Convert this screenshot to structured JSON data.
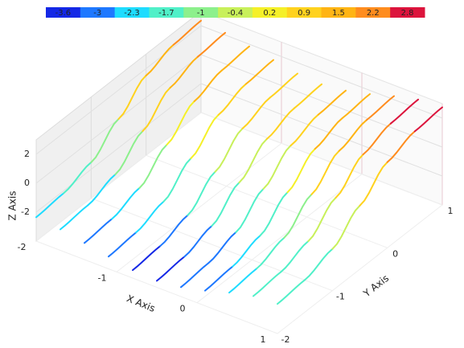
{
  "chart_data": {
    "type": "line3d",
    "x_label": "X Axis",
    "y_label": "Y Axis",
    "z_label": "Z Axis",
    "xlim": [
      -2,
      1
    ],
    "ylim": [
      -2,
      1
    ],
    "zlim": [
      -4,
      3
    ],
    "xticks": [
      -2,
      -1,
      0,
      1
    ],
    "yticks": [
      -2,
      -1,
      0,
      1
    ],
    "zticks": [
      -2,
      0,
      2
    ],
    "colorbar": {
      "ticks": [
        -3.6,
        -3,
        -2.3,
        -1.7,
        -1,
        -0.4,
        0.2,
        0.9,
        1.5,
        2.2,
        2.8
      ],
      "colors": [
        "#1428e6",
        "#1e78ff",
        "#1edcff",
        "#50f0c8",
        "#8cf08c",
        "#c8f05a",
        "#f5f028",
        "#ffd21e",
        "#ffb414",
        "#ff8c1e",
        "#dc143c"
      ]
    },
    "y": [
      -2,
      -1.5,
      -1,
      -0.5,
      0,
      0.5,
      1
    ],
    "series": [
      {
        "x": -2,
        "values": [
          -2.35,
          -2.17,
          -1.52,
          0,
          1.52,
          2.17,
          2.35
        ]
      },
      {
        "x": -1.7,
        "values": [
          -2.55,
          -2.37,
          -1.72,
          -0.2,
          1.32,
          1.97,
          2.15
        ]
      },
      {
        "x": -1.4,
        "values": [
          -2.85,
          -2.67,
          -2.02,
          -0.5,
          1.02,
          1.67,
          1.85
        ]
      },
      {
        "x": -1.1,
        "values": [
          -3.15,
          -2.97,
          -2.32,
          -0.8,
          0.72,
          1.37,
          1.55
        ]
      },
      {
        "x": -0.8,
        "values": [
          -3.45,
          -3.27,
          -2.62,
          -1.1,
          0.42,
          1.07,
          1.25
        ]
      },
      {
        "x": -0.5,
        "values": [
          -3.55,
          -3.37,
          -2.72,
          -1.2,
          0.32,
          0.97,
          1.15
        ]
      },
      {
        "x": -0.2,
        "values": [
          -3.35,
          -3.17,
          -2.52,
          -1,
          0.52,
          1.17,
          1.35
        ]
      },
      {
        "x": 0.1,
        "values": [
          -2.95,
          -2.77,
          -2.12,
          -0.6,
          0.92,
          1.57,
          1.75
        ]
      },
      {
        "x": 0.4,
        "values": [
          -2.45,
          -2.27,
          -1.62,
          -0.1,
          1.42,
          2.07,
          2.25
        ]
      },
      {
        "x": 0.7,
        "values": [
          -2.05,
          -1.87,
          -1.22,
          0.3,
          1.82,
          2.47,
          2.65
        ]
      },
      {
        "x": 1,
        "values": [
          -1.95,
          -1.77,
          -1.12,
          0.4,
          1.92,
          2.57,
          2.75
        ]
      }
    ]
  }
}
